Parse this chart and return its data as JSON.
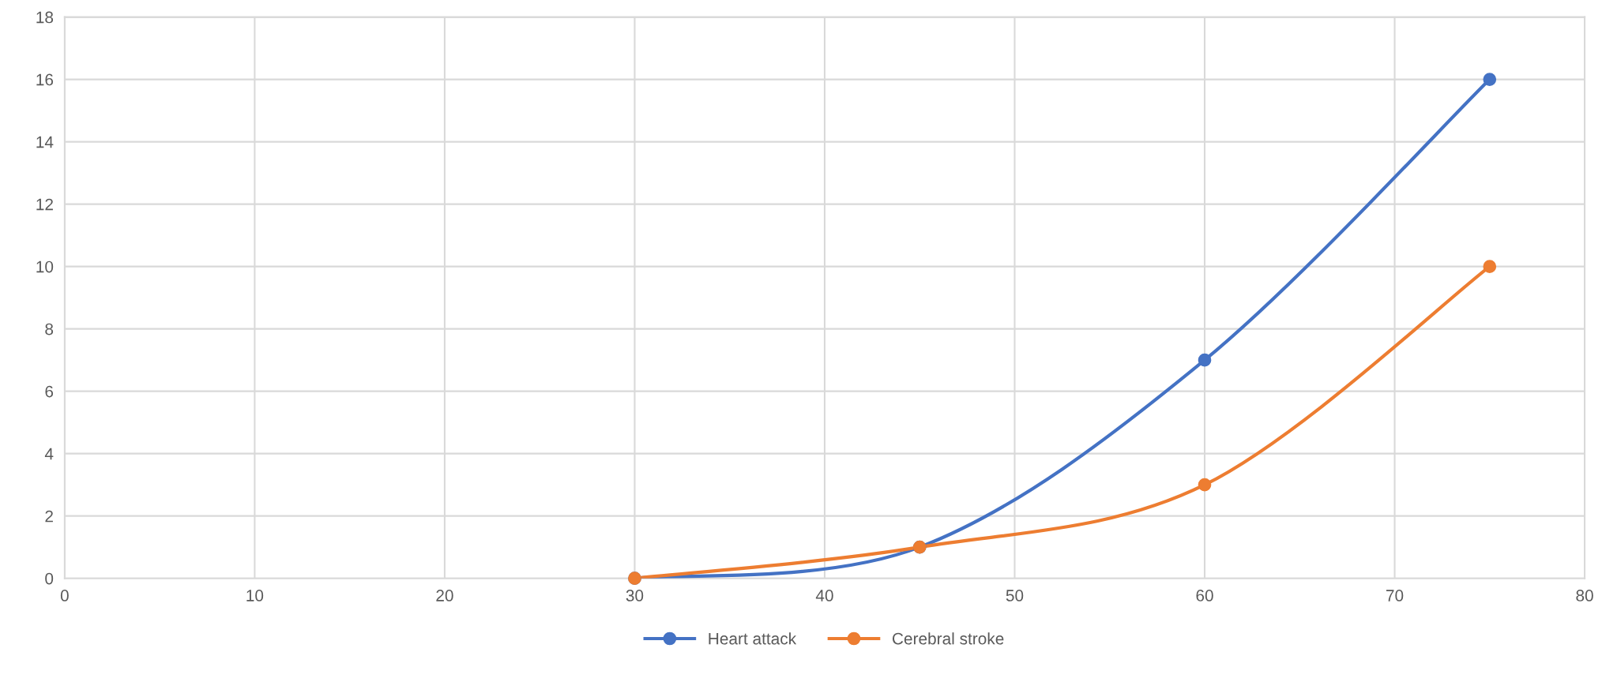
{
  "chart_data": {
    "type": "line",
    "x": [
      30,
      45,
      60,
      75
    ],
    "series": [
      {
        "name": "Heart attack",
        "color": "#4472c4",
        "values": [
          0,
          1,
          7,
          16
        ]
      },
      {
        "name": "Cerebral stroke",
        "color": "#ed7d31",
        "values": [
          0,
          1,
          3,
          10
        ]
      }
    ],
    "xlim": [
      0,
      80
    ],
    "xticks": [
      0,
      10,
      20,
      30,
      40,
      50,
      60,
      70,
      80
    ],
    "ylim": [
      0,
      18
    ],
    "yticks": [
      0,
      2,
      4,
      6,
      8,
      10,
      12,
      14,
      16,
      18
    ],
    "grid": true,
    "legend": "bottom",
    "marker": "circle",
    "line_style": "solid"
  }
}
